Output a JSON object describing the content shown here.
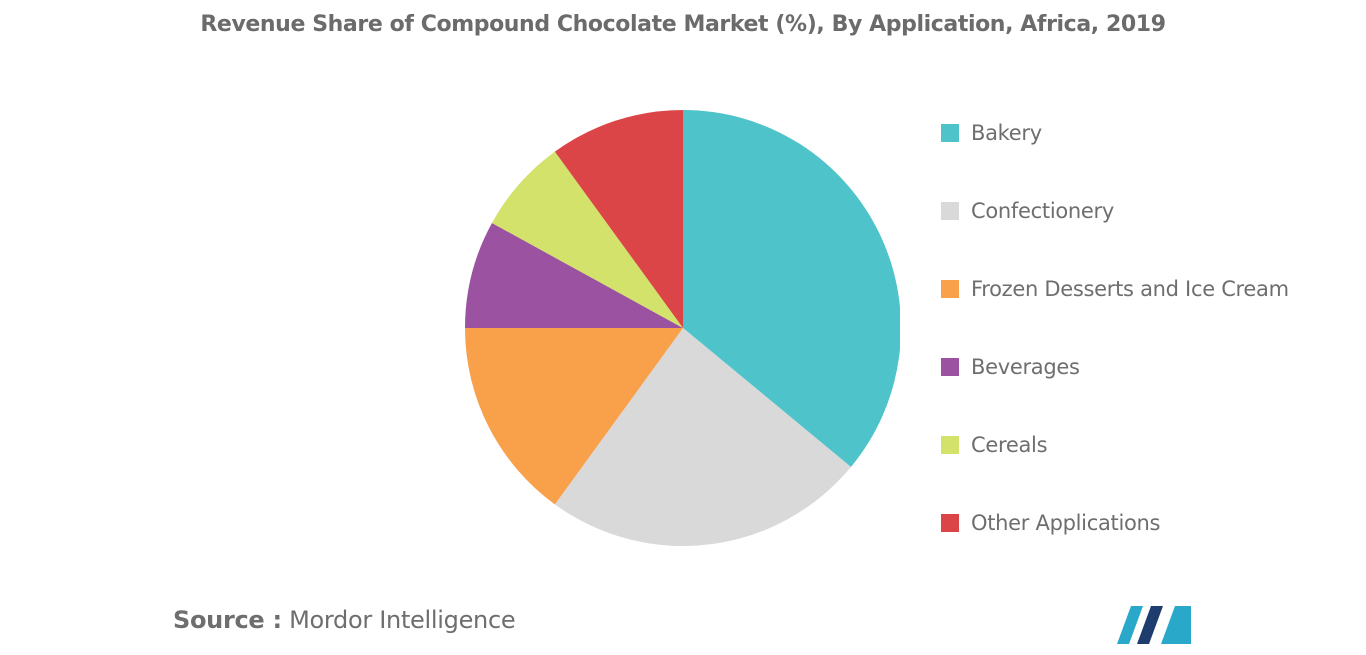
{
  "chart_data": {
    "type": "pie",
    "title": "Revenue Share of Compound Chocolate Market (%), By Application, Africa, 2019",
    "categories": [
      "Bakery",
      "Confectionery",
      "Frozen Desserts and Ice Cream",
      "Beverages",
      "Cereals",
      "Other Applications"
    ],
    "values": [
      36,
      24,
      15,
      8,
      7,
      10
    ],
    "colors": [
      "#4fc3ca",
      "#d9d9d9",
      "#f9a04a",
      "#9b52a0",
      "#d3e26a",
      "#dc4547"
    ],
    "legend_position": "right",
    "start_angle": "12 o'clock",
    "direction": "clockwise"
  },
  "source": {
    "key": "Source :",
    "value": "Mordor Intelligence"
  },
  "logo": {
    "icon": "mordor-intelligence-logo-icon",
    "colors": [
      "#1e3c6e",
      "#29a8c9"
    ]
  }
}
